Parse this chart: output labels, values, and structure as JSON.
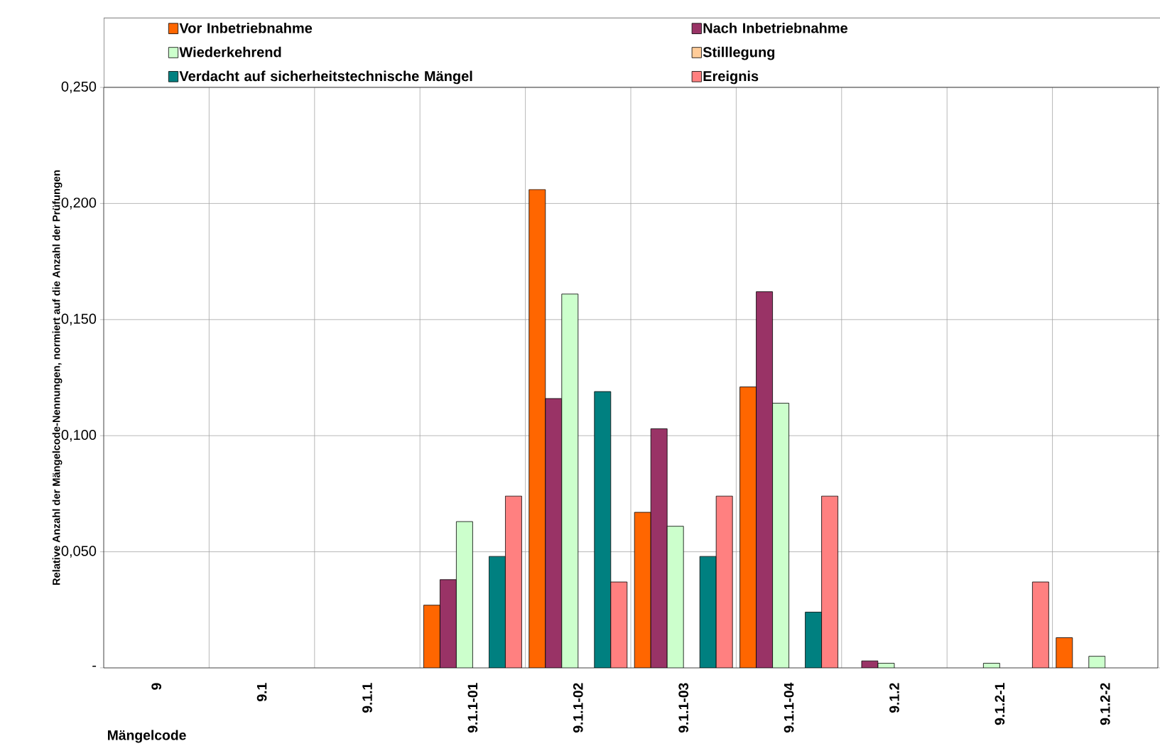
{
  "chart_data": {
    "type": "bar",
    "xlabel": "Mängelcode",
    "ylabel": "Relative Anzahl der Mängelcode-Nennungen, normiert auf die Anzahl der Prüfungen",
    "categories": [
      "9",
      "9.1",
      "9.1.1",
      "9.1.1-01",
      "9.1.1-02",
      "9.1.1-03",
      "9.1.1-04",
      "9.1.2",
      "9.1.2-1",
      "9.1.2-2"
    ],
    "series": [
      {
        "name": "Vor Inbetriebnahme",
        "color": "#ff6600",
        "values": [
          null,
          null,
          null,
          0.027,
          0.206,
          0.067,
          0.121,
          null,
          null,
          0.013
        ]
      },
      {
        "name": "Nach Inbetriebnahme",
        "color": "#993366",
        "values": [
          null,
          null,
          null,
          0.038,
          0.116,
          0.103,
          0.162,
          0.003,
          null,
          null
        ]
      },
      {
        "name": "Wiederkehrend",
        "color": "#ccffcc",
        "values": [
          null,
          null,
          null,
          0.063,
          0.161,
          0.061,
          0.114,
          0.002,
          0.002,
          0.005
        ]
      },
      {
        "name": "Stilllegung",
        "color": "#ffcc99",
        "values": [
          null,
          null,
          null,
          null,
          null,
          null,
          null,
          null,
          null,
          null
        ]
      },
      {
        "name": "Verdacht auf sicherheitstechnische Mängel",
        "color": "#008080",
        "values": [
          null,
          null,
          null,
          0.048,
          0.119,
          0.048,
          0.024,
          null,
          null,
          null
        ]
      },
      {
        "name": "Ereignis",
        "color": "#ff8080",
        "values": [
          null,
          null,
          null,
          0.074,
          0.037,
          0.074,
          0.074,
          null,
          0.037,
          null
        ]
      }
    ],
    "ylim": [
      0,
      0.25
    ],
    "yticks": [
      {
        "value": 0,
        "label": "-"
      },
      {
        "value": 0.05,
        "label": "0,050"
      },
      {
        "value": 0.1,
        "label": "0,100"
      },
      {
        "value": 0.15,
        "label": "0,150"
      },
      {
        "value": 0.2,
        "label": "0,200"
      },
      {
        "value": 0.25,
        "label": "0,250"
      }
    ],
    "grid": true,
    "legend": "top"
  }
}
